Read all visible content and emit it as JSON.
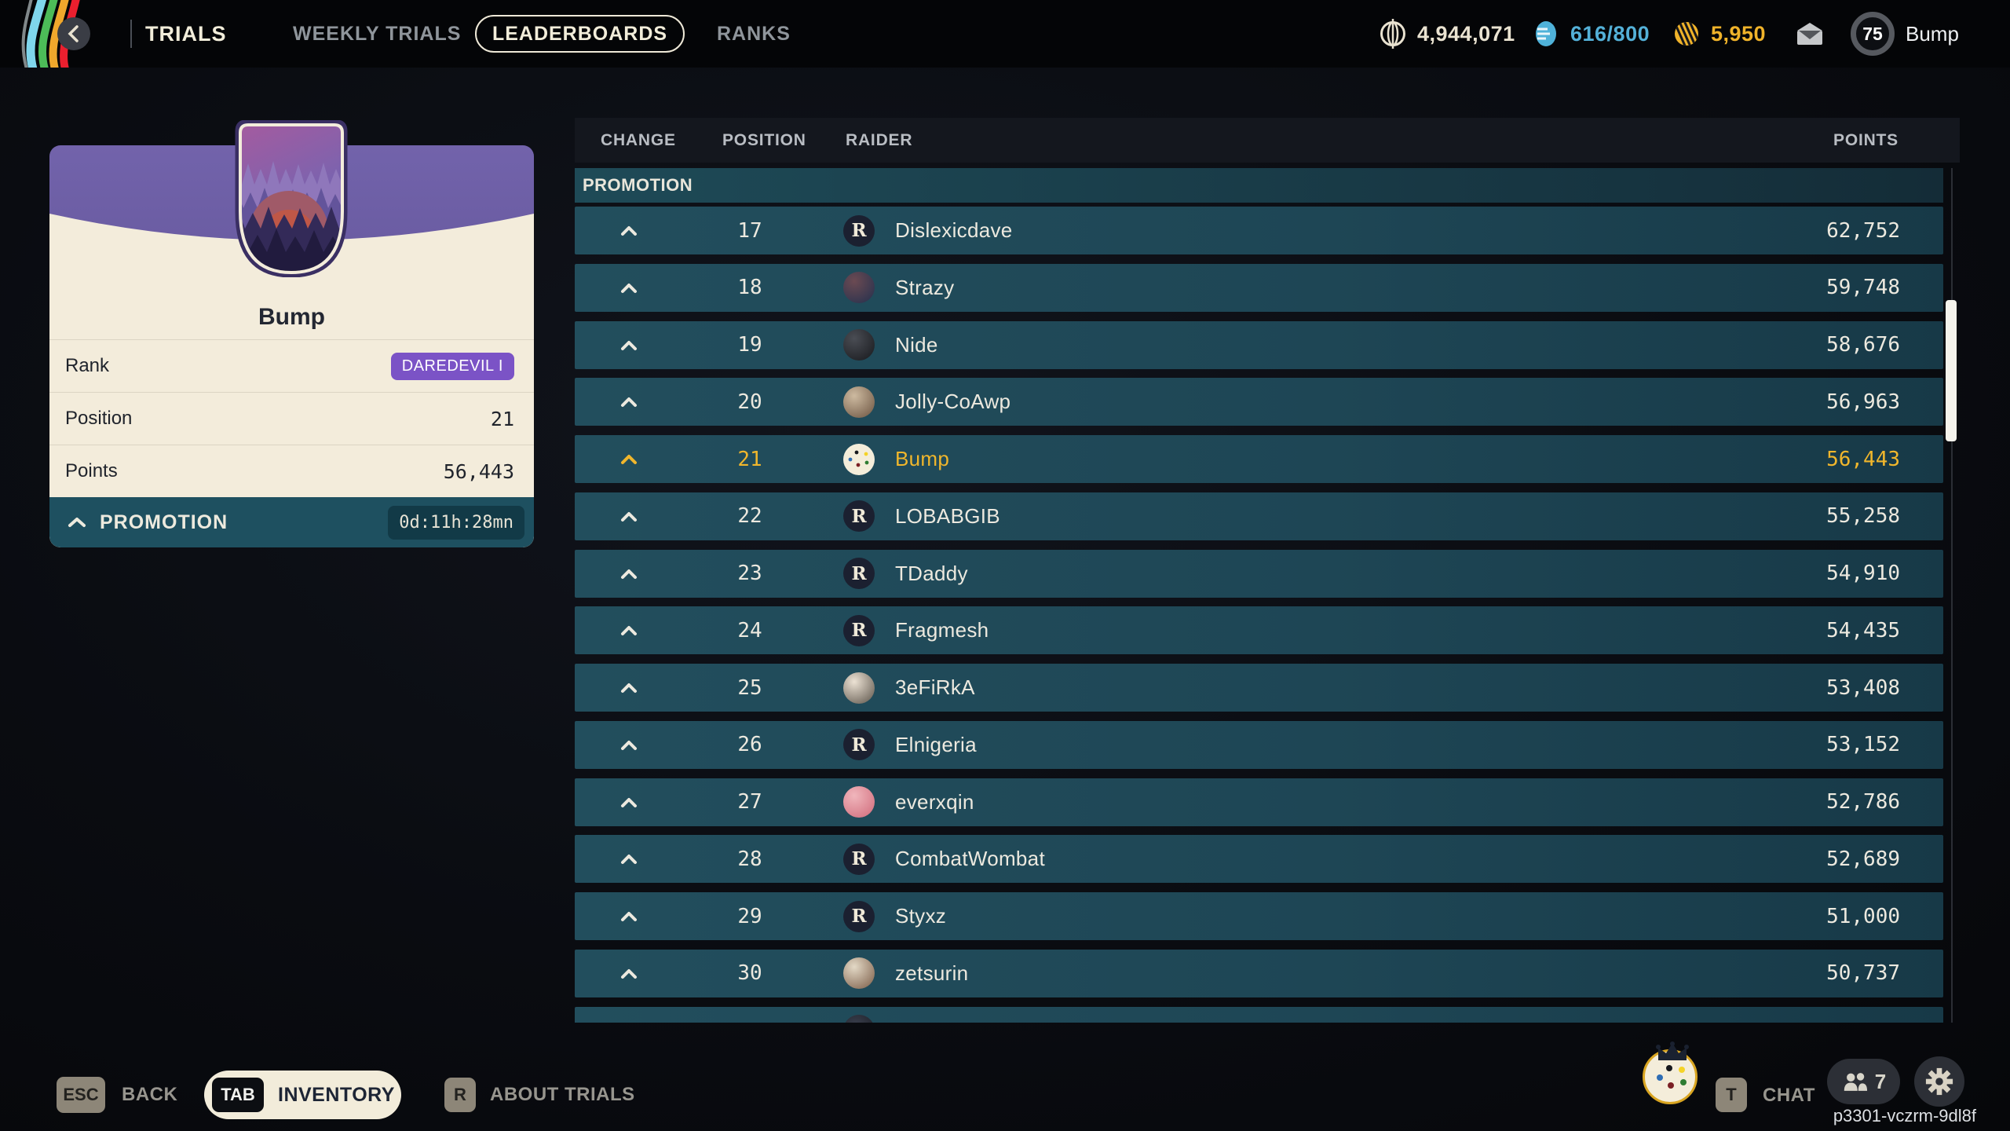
{
  "top_bar": {
    "title": "TRIALS",
    "tabs": [
      {
        "label": "WEEKLY TRIALS",
        "active": false
      },
      {
        "label": "LEADERBOARDS",
        "active": true
      },
      {
        "label": "RANKS",
        "active": false
      }
    ],
    "currencies": [
      {
        "icon": "coin-icon",
        "value": "4,944,071",
        "color": "#eae3d1"
      },
      {
        "icon": "token-icon",
        "value": "616/800",
        "color": "#54b1d8"
      },
      {
        "icon": "raider-ticket-icon",
        "value": "5,950",
        "color": "#f0b32a"
      }
    ],
    "player": {
      "level": "75",
      "name": "Bump"
    }
  },
  "player_card": {
    "name": "Bump",
    "stats": [
      {
        "label": "Rank",
        "value": "DAREDEVIL I",
        "type": "badge"
      },
      {
        "label": "Position",
        "value": "21",
        "type": "number"
      },
      {
        "label": "Points",
        "value": "56,443",
        "type": "number"
      }
    ],
    "footer": {
      "label": "PROMOTION",
      "timer": "0d:11h:28mn"
    }
  },
  "leaderboard": {
    "columns": [
      "CHANGE",
      "POSITION",
      "RAIDER",
      "POINTS"
    ],
    "section_label": "PROMOTION",
    "rows": [
      {
        "change": "up",
        "position": "17",
        "name": "Dislexicdave",
        "points": "62,752",
        "avatar": {
          "type": "logo"
        },
        "highlight": false
      },
      {
        "change": "up",
        "position": "18",
        "name": "Strazy",
        "points": "59,748",
        "avatar": {
          "type": "photo",
          "c1": "#6b4a52",
          "c2": "#23304e"
        },
        "highlight": false
      },
      {
        "change": "up",
        "position": "19",
        "name": "Nide",
        "points": "58,676",
        "avatar": {
          "type": "photo",
          "c1": "#4a4d54",
          "c2": "#17181c"
        },
        "highlight": false
      },
      {
        "change": "up",
        "position": "20",
        "name": "Jolly-CoAwp",
        "points": "56,963",
        "avatar": {
          "type": "photo",
          "c1": "#cdbaa0",
          "c2": "#6b5340"
        },
        "highlight": false
      },
      {
        "change": "up",
        "position": "21",
        "name": "Bump",
        "points": "56,443",
        "avatar": {
          "type": "cookie"
        },
        "highlight": true
      },
      {
        "change": "up",
        "position": "22",
        "name": "LOBABGIB",
        "points": "55,258",
        "avatar": {
          "type": "logo"
        },
        "highlight": false
      },
      {
        "change": "up",
        "position": "23",
        "name": "TDaddy",
        "points": "54,910",
        "avatar": {
          "type": "logo"
        },
        "highlight": false
      },
      {
        "change": "up",
        "position": "24",
        "name": "Fragmesh",
        "points": "54,435",
        "avatar": {
          "type": "logo"
        },
        "highlight": false
      },
      {
        "change": "up",
        "position": "25",
        "name": "3eFiRkA",
        "points": "53,408",
        "avatar": {
          "type": "photo",
          "c1": "#ece2d4",
          "c2": "#5a5248"
        },
        "highlight": false
      },
      {
        "change": "up",
        "position": "26",
        "name": "Elnigeria",
        "points": "53,152",
        "avatar": {
          "type": "logo"
        },
        "highlight": false
      },
      {
        "change": "up",
        "position": "27",
        "name": "everxqin",
        "points": "52,786",
        "avatar": {
          "type": "photo",
          "c1": "#f0b6bc",
          "c2": "#d06a7a"
        },
        "highlight": false
      },
      {
        "change": "up",
        "position": "28",
        "name": "CombatWombat",
        "points": "52,689",
        "avatar": {
          "type": "logo"
        },
        "highlight": false
      },
      {
        "change": "up",
        "position": "29",
        "name": "Styxz",
        "points": "51,000",
        "avatar": {
          "type": "logo"
        },
        "highlight": false
      },
      {
        "change": "up",
        "position": "30",
        "name": "zetsurin",
        "points": "50,737",
        "avatar": {
          "type": "photo",
          "c1": "#e3d9c6",
          "c2": "#7a5b46"
        },
        "highlight": false
      }
    ],
    "partial_row_visible": true
  },
  "bottom_bar": {
    "hints": [
      {
        "key": "ESC",
        "label": "BACK"
      },
      {
        "key": "TAB",
        "label": "INVENTORY"
      },
      {
        "key": "R",
        "label": "ABOUT TRIALS"
      }
    ],
    "chat": {
      "key": "T",
      "label": "CHAT"
    },
    "party_count": "7",
    "session_id": "p3301-vczrm-9dl8f"
  },
  "colors": {
    "accent_yellow": "#f0b62c",
    "row_teal": "#1e4655",
    "card_cream": "#f3ecdb",
    "badge_purple": "#7b53c6",
    "footer_teal": "#1e5060"
  }
}
